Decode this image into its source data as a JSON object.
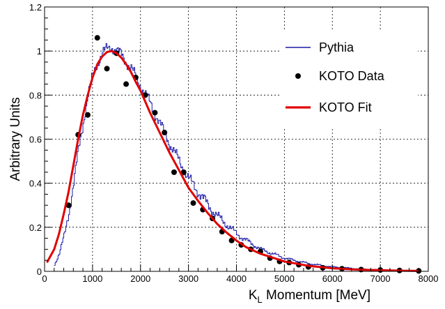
{
  "chart_data": {
    "type": "line",
    "xlabel": {
      "main": "K",
      "sub": "L",
      "rest": " Momentum [MeV]"
    },
    "ylabel": "Arbitrary Units",
    "xlim": [
      0,
      8000
    ],
    "ylim": [
      0,
      1.2
    ],
    "x_ticks": [
      0,
      1000,
      2000,
      3000,
      4000,
      5000,
      6000,
      7000,
      8000
    ],
    "y_ticks": [
      0,
      0.2,
      0.4,
      0.6,
      0.8,
      1,
      1.2
    ],
    "grid": true,
    "legend_position": "top-right",
    "series": [
      {
        "name": "Pythia",
        "style": "histogram-line",
        "color": "#1a1aa6",
        "x": [
          200,
          300,
          400,
          500,
          600,
          700,
          800,
          900,
          1000,
          1100,
          1200,
          1300,
          1400,
          1500,
          1600,
          1700,
          1800,
          1900,
          2000,
          2200,
          2400,
          2600,
          2800,
          3000,
          3200,
          3400,
          3600,
          3800,
          4000,
          4200,
          4500,
          5000,
          5500,
          6000,
          6500,
          7000,
          7500,
          7800
        ],
        "y": [
          0.03,
          0.08,
          0.16,
          0.27,
          0.4,
          0.55,
          0.68,
          0.8,
          0.89,
          0.95,
          0.99,
          1.01,
          1.02,
          1.0,
          0.98,
          0.95,
          0.92,
          0.88,
          0.84,
          0.76,
          0.67,
          0.58,
          0.5,
          0.42,
          0.36,
          0.3,
          0.25,
          0.21,
          0.17,
          0.14,
          0.1,
          0.06,
          0.035,
          0.02,
          0.012,
          0.006,
          0.003,
          0.002
        ]
      },
      {
        "name": "KOTO Data",
        "style": "markers",
        "color": "#000000",
        "x": [
          500,
          700,
          900,
          1100,
          1300,
          1500,
          1700,
          1900,
          2100,
          2300,
          2500,
          2700,
          2900,
          3100,
          3300,
          3500,
          3700,
          3900,
          4100,
          4300,
          4500,
          4700,
          4900,
          5100,
          5300,
          5500,
          5800,
          6200,
          6600,
          7000,
          7400,
          7800
        ],
        "y": [
          0.3,
          0.62,
          0.71,
          1.06,
          0.92,
          0.99,
          0.85,
          0.88,
          0.8,
          0.72,
          0.63,
          0.45,
          0.45,
          0.31,
          0.28,
          0.24,
          0.18,
          0.14,
          0.12,
          0.1,
          0.09,
          0.06,
          0.045,
          0.04,
          0.03,
          0.02,
          0.016,
          0.012,
          0.008,
          0.006,
          0.004,
          0.002
        ]
      },
      {
        "name": "KOTO Fit",
        "style": "line",
        "color": "#e00000",
        "x": [
          50,
          200,
          300,
          400,
          500,
          600,
          700,
          800,
          900,
          1000,
          1100,
          1200,
          1300,
          1400,
          1500,
          1600,
          1700,
          1800,
          1900,
          2000,
          2200,
          2400,
          2600,
          2800,
          3000,
          3200,
          3400,
          3600,
          3800,
          4000,
          4200,
          4500,
          5000,
          5500,
          6000,
          6500,
          7000,
          7500,
          7800
        ],
        "y": [
          0.04,
          0.1,
          0.17,
          0.26,
          0.36,
          0.48,
          0.6,
          0.71,
          0.8,
          0.88,
          0.94,
          0.975,
          0.995,
          1.0,
          0.99,
          0.97,
          0.94,
          0.905,
          0.86,
          0.82,
          0.72,
          0.63,
          0.54,
          0.46,
          0.38,
          0.32,
          0.265,
          0.215,
          0.175,
          0.14,
          0.11,
          0.08,
          0.045,
          0.025,
          0.014,
          0.008,
          0.005,
          0.003,
          0.002
        ]
      }
    ]
  }
}
